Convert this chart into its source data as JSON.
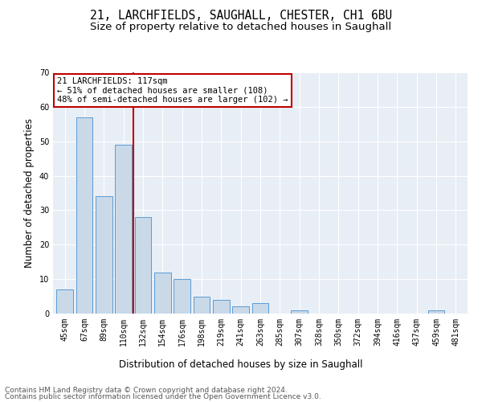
{
  "title1": "21, LARCHFIELDS, SAUGHALL, CHESTER, CH1 6BU",
  "title2": "Size of property relative to detached houses in Saughall",
  "xlabel": "Distribution of detached houses by size in Saughall",
  "ylabel": "Number of detached properties",
  "categories": [
    "45sqm",
    "67sqm",
    "89sqm",
    "110sqm",
    "132sqm",
    "154sqm",
    "176sqm",
    "198sqm",
    "219sqm",
    "241sqm",
    "263sqm",
    "285sqm",
    "307sqm",
    "328sqm",
    "350sqm",
    "372sqm",
    "394sqm",
    "416sqm",
    "437sqm",
    "459sqm",
    "481sqm"
  ],
  "values": [
    7,
    57,
    34,
    49,
    28,
    12,
    10,
    5,
    4,
    2,
    3,
    0,
    1,
    0,
    0,
    0,
    0,
    0,
    0,
    1,
    0
  ],
  "bar_color": "#c9d9e8",
  "bar_edge_color": "#5b9bd5",
  "vline_x": 3.5,
  "vline_color": "#c00000",
  "annotation_text": "21 LARCHFIELDS: 117sqm\n← 51% of detached houses are smaller (108)\n48% of semi-detached houses are larger (102) →",
  "annotation_box_color": "white",
  "annotation_box_edge": "#c00000",
  "ylim": [
    0,
    70
  ],
  "yticks": [
    0,
    10,
    20,
    30,
    40,
    50,
    60,
    70
  ],
  "footer1": "Contains HM Land Registry data © Crown copyright and database right 2024.",
  "footer2": "Contains public sector information licensed under the Open Government Licence v3.0.",
  "bg_color": "#e8eef5",
  "title1_fontsize": 10.5,
  "title2_fontsize": 9.5,
  "xlabel_fontsize": 8.5,
  "ylabel_fontsize": 8.5,
  "tick_fontsize": 7,
  "annot_fontsize": 7.5,
  "footer_fontsize": 6.5
}
